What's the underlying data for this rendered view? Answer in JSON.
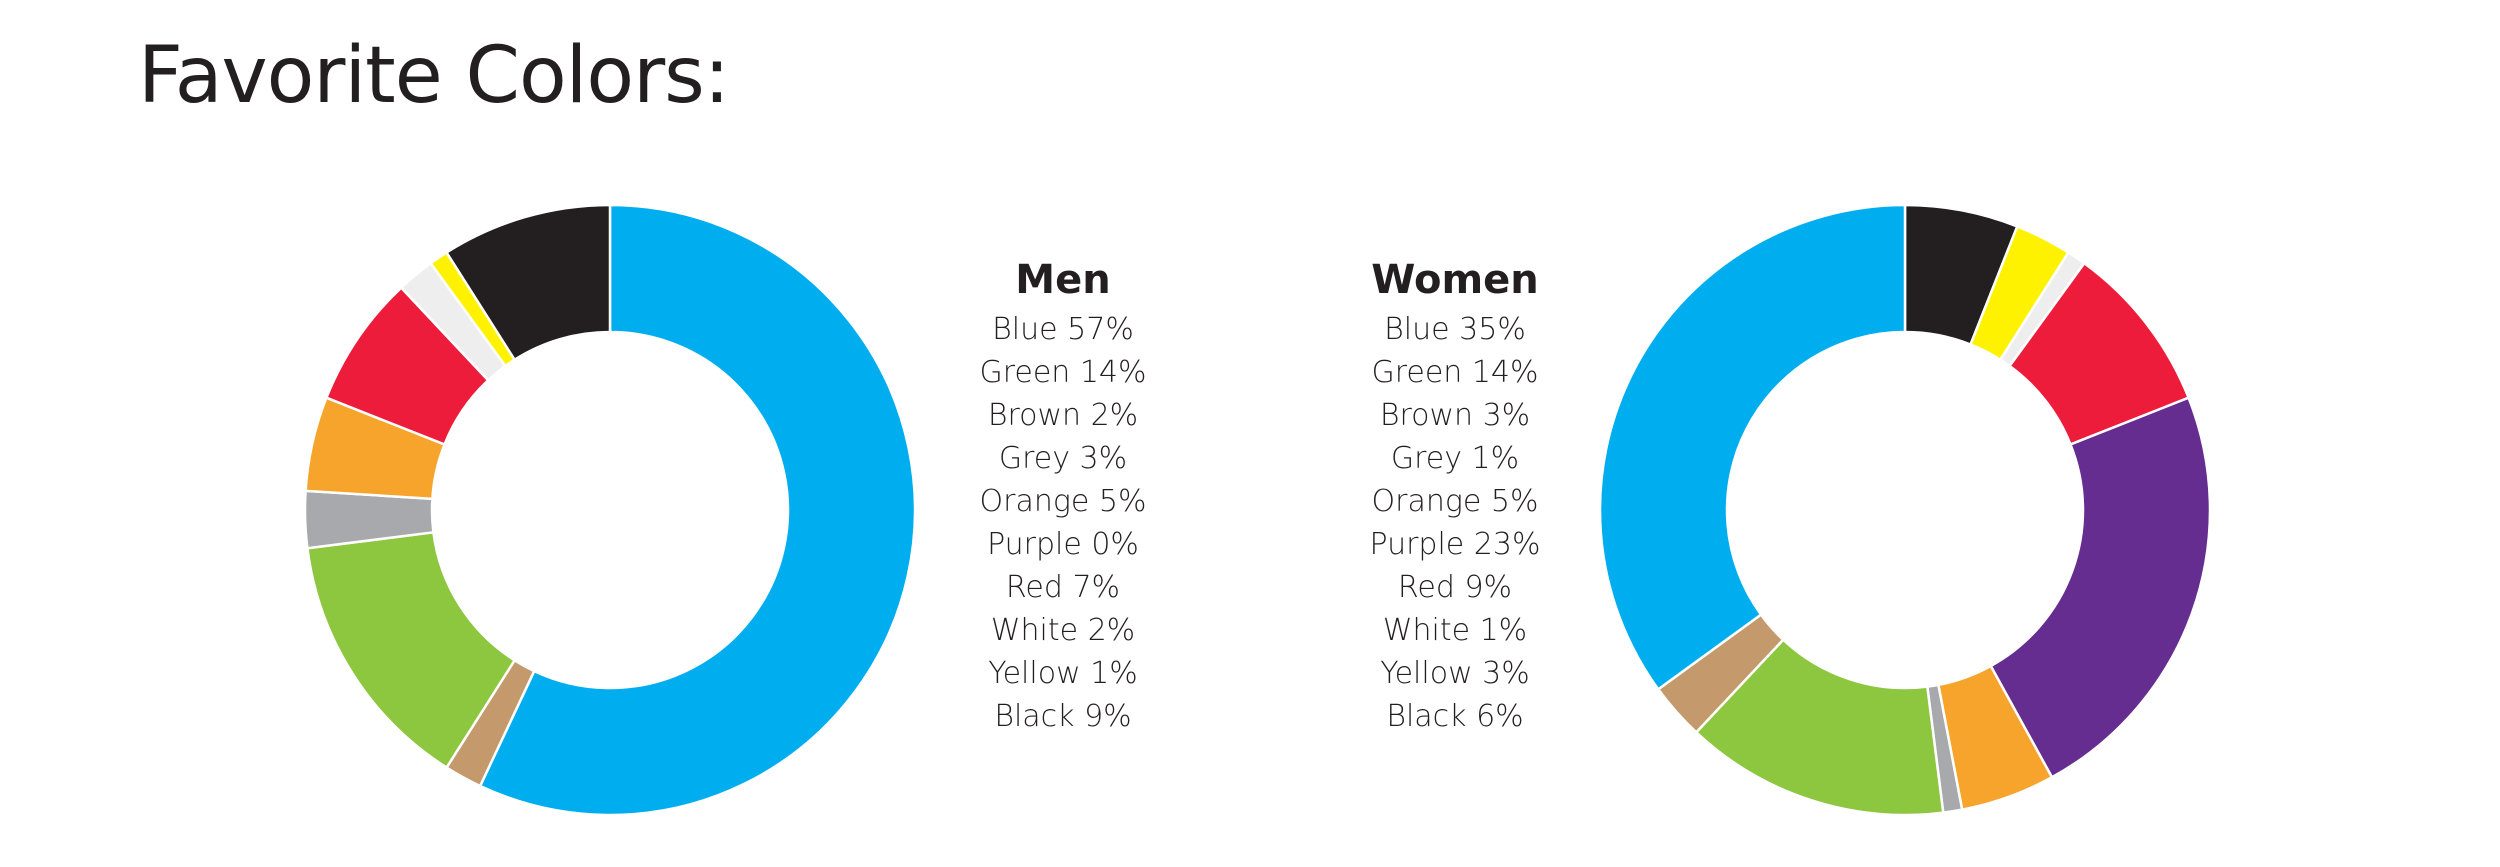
{
  "page": {
    "title": "Favorite Colors:"
  },
  "chart_data": [
    {
      "type": "pie",
      "title": "Men",
      "slices": [
        {
          "label": "Blue",
          "value": 57,
          "label_text": "Blue 57%",
          "color": "#00aeef"
        },
        {
          "label": "Brown",
          "value": 2,
          "label_text": "Brown 2%",
          "color": "#c49a6c"
        },
        {
          "label": "Green",
          "value": 14,
          "label_text": "Green 14%",
          "color": "#8dc63f"
        },
        {
          "label": "Grey",
          "value": 3,
          "label_text": "Grey 3%",
          "color": "#a7a9ac"
        },
        {
          "label": "Orange",
          "value": 5,
          "label_text": "Orange 5%",
          "color": "#f7a42d"
        },
        {
          "label": "Red",
          "value": 7,
          "label_text": "Red 7%",
          "color": "#ed1c3a"
        },
        {
          "label": "White",
          "value": 2,
          "label_text": "White 2%",
          "color": "#eeeeee"
        },
        {
          "label": "Yellow",
          "value": 1,
          "label_text": "Yellow 1%",
          "color": "#fff200"
        },
        {
          "label": "Black",
          "value": 9,
          "label_text": "Black 9%",
          "color": "#231f20"
        },
        {
          "label": "Purple",
          "value": 0,
          "label_text": "Purple 0%",
          "color": "#662d91"
        }
      ],
      "legend_order": [
        "Blue",
        "Green",
        "Brown",
        "Grey",
        "Orange",
        "Purple",
        "Red",
        "White",
        "Yellow",
        "Black"
      ]
    },
    {
      "type": "pie",
      "title": "Women",
      "slices": [
        {
          "label": "Black",
          "value": 6,
          "label_text": "Black 6%",
          "color": "#231f20"
        },
        {
          "label": "Yellow",
          "value": 3,
          "label_text": "Yellow 3%",
          "color": "#fff200"
        },
        {
          "label": "White",
          "value": 1,
          "label_text": "White 1%",
          "color": "#eeeeee"
        },
        {
          "label": "Red",
          "value": 9,
          "label_text": "Red 9%",
          "color": "#ed1c3a"
        },
        {
          "label": "Purple",
          "value": 23,
          "label_text": "Purple 23%",
          "color": "#662d91"
        },
        {
          "label": "Orange",
          "value": 5,
          "label_text": "Orange 5%",
          "color": "#f7a42d"
        },
        {
          "label": "Grey",
          "value": 1,
          "label_text": "Grey 1%",
          "color": "#a7a9ac"
        },
        {
          "label": "Green",
          "value": 14,
          "label_text": "Green 14%",
          "color": "#8dc63f"
        },
        {
          "label": "Brown",
          "value": 3,
          "label_text": "Brown 3%",
          "color": "#c49a6c"
        },
        {
          "label": "Blue",
          "value": 35,
          "label_text": "Blue 35%",
          "color": "#00aeef"
        }
      ],
      "legend_order": [
        "Blue",
        "Green",
        "Brown",
        "Grey",
        "Orange",
        "Purple",
        "Red",
        "White",
        "Yellow",
        "Black"
      ]
    }
  ]
}
